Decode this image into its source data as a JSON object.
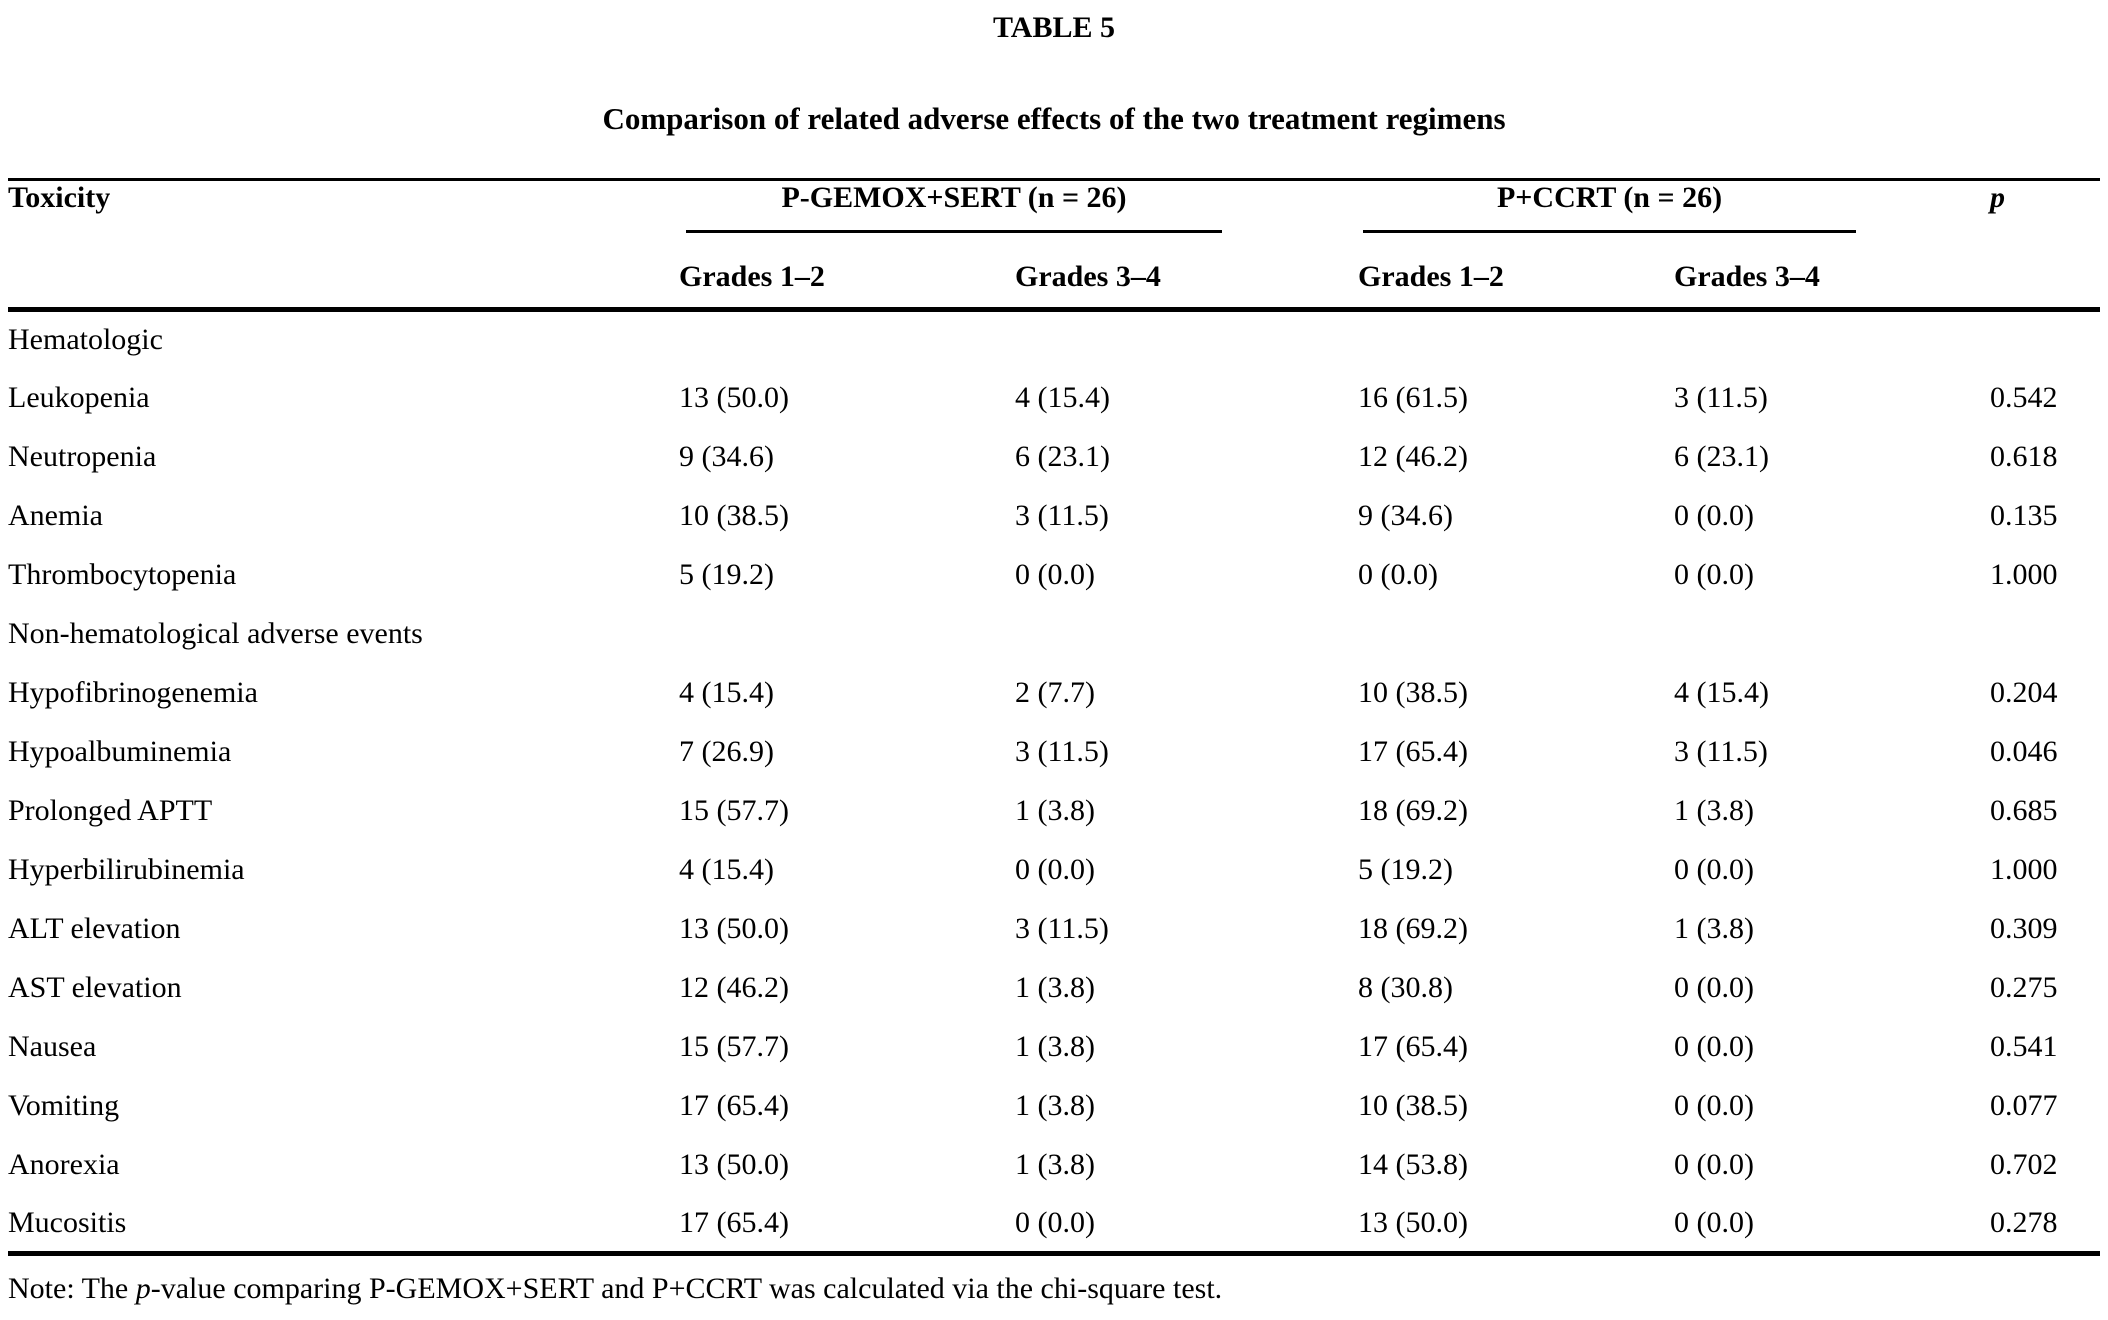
{
  "table": {
    "label": "TABLE 5",
    "title": "Comparison of related adverse effects of the two treatment regimens",
    "header": {
      "toxicity": "Toxicity",
      "group1": "P-GEMOX+SERT (n = 26)",
      "group2": "P+CCRT (n = 26)",
      "p": "p",
      "sub": [
        "Grades 1–2",
        "Grades 3–4",
        "Grades 1–2",
        "Grades 3–4"
      ]
    },
    "rows": [
      {
        "type": "section",
        "label": "Hematologic"
      },
      {
        "type": "data",
        "label": "Leukopenia",
        "values": [
          "13 (50.0)",
          "4 (15.4)",
          "16 (61.5)",
          "3 (11.5)",
          "0.542"
        ]
      },
      {
        "type": "data",
        "label": "Neutropenia",
        "values": [
          "9 (34.6)",
          "6 (23.1)",
          "12 (46.2)",
          "6 (23.1)",
          "0.618"
        ]
      },
      {
        "type": "data",
        "label": "Anemia",
        "values": [
          "10 (38.5)",
          "3 (11.5)",
          "9 (34.6)",
          "0 (0.0)",
          "0.135"
        ]
      },
      {
        "type": "data",
        "label": "Thrombocytopenia",
        "values": [
          "5 (19.2)",
          "0 (0.0)",
          "0 (0.0)",
          "0 (0.0)",
          "1.000"
        ]
      },
      {
        "type": "section",
        "label": "Non-hematological adverse events"
      },
      {
        "type": "data",
        "label": "Hypofibrinogenemia",
        "values": [
          "4 (15.4)",
          "2 (7.7)",
          "10 (38.5)",
          "4 (15.4)",
          "0.204"
        ]
      },
      {
        "type": "data",
        "label": "Hypoalbuminemia",
        "values": [
          "7 (26.9)",
          "3 (11.5)",
          "17 (65.4)",
          "3 (11.5)",
          "0.046"
        ]
      },
      {
        "type": "data",
        "label": "Prolonged APTT",
        "values": [
          "15 (57.7)",
          "1 (3.8)",
          "18 (69.2)",
          "1 (3.8)",
          "0.685"
        ]
      },
      {
        "type": "data",
        "label": "Hyperbilirubinemia",
        "values": [
          "4 (15.4)",
          "0 (0.0)",
          "5 (19.2)",
          "0 (0.0)",
          "1.000"
        ]
      },
      {
        "type": "data",
        "label": "ALT elevation",
        "values": [
          "13 (50.0)",
          "3 (11.5)",
          "18 (69.2)",
          "1 (3.8)",
          "0.309"
        ]
      },
      {
        "type": "data",
        "label": "AST elevation",
        "values": [
          "12 (46.2)",
          "1 (3.8)",
          "8 (30.8)",
          "0 (0.0)",
          "0.275"
        ]
      },
      {
        "type": "data",
        "label": "Nausea",
        "values": [
          "15 (57.7)",
          "1 (3.8)",
          "17 (65.4)",
          "0 (0.0)",
          "0.541"
        ]
      },
      {
        "type": "data",
        "label": "Vomiting",
        "values": [
          "17 (65.4)",
          "1 (3.8)",
          "10 (38.5)",
          "0 (0.0)",
          "0.077"
        ]
      },
      {
        "type": "data",
        "label": "Anorexia",
        "values": [
          "13 (50.0)",
          "1 (3.8)",
          "14 (53.8)",
          "0 (0.0)",
          "0.702"
        ]
      },
      {
        "type": "data",
        "label": "Mucositis",
        "values": [
          "17 (65.4)",
          "0 (0.0)",
          "13 (50.0)",
          "0 (0.0)",
          "0.278"
        ]
      }
    ],
    "note_prefix": "Note: The ",
    "note_italic": "p",
    "note_suffix": "-value comparing P-GEMOX+SERT and P+CCRT was calculated via the chi-square test."
  }
}
